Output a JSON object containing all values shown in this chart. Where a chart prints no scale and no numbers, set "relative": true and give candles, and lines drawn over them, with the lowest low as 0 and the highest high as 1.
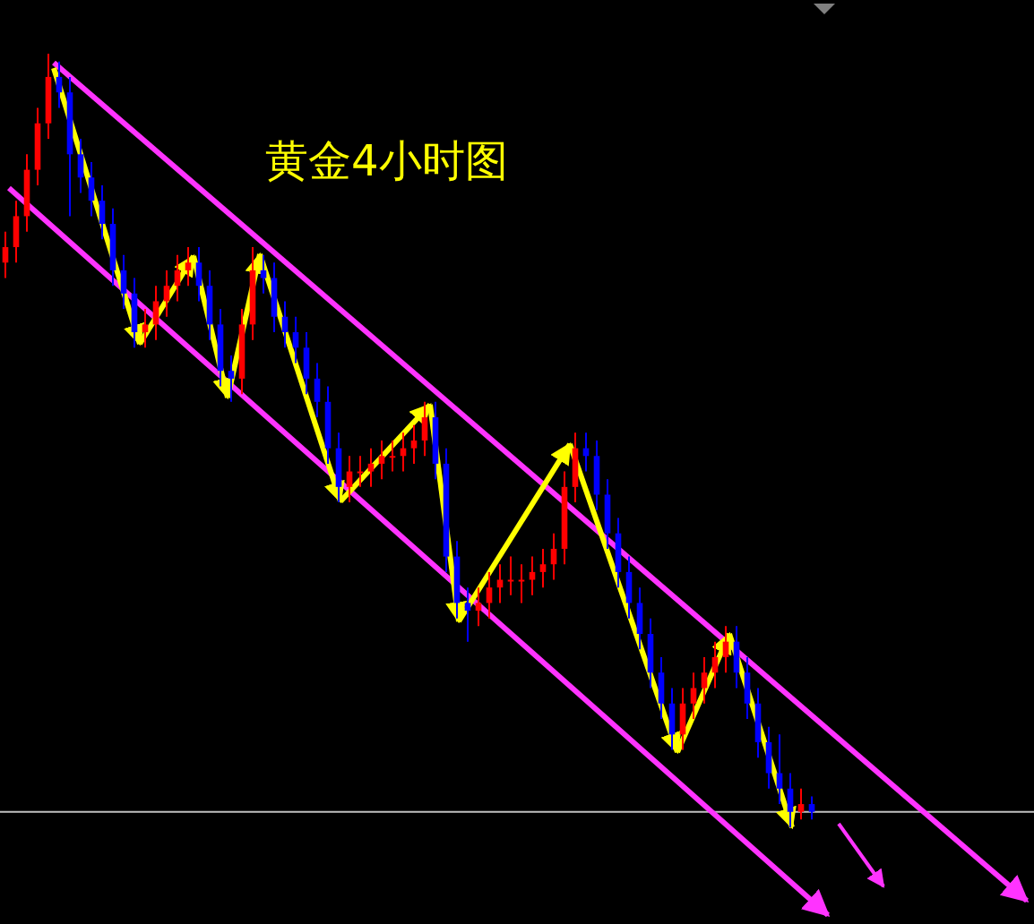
{
  "chart_data": {
    "type": "candlestick",
    "title": "黄金4小时图",
    "relative": true,
    "categories": [
      null,
      null,
      null,
      null,
      null,
      null,
      null,
      null,
      null,
      null,
      null,
      null,
      null,
      null,
      null,
      null,
      null,
      null,
      null,
      null,
      null,
      null,
      null,
      null,
      null,
      null,
      null,
      null,
      null,
      null,
      null,
      null,
      null,
      null,
      null,
      null,
      null,
      null,
      null,
      null,
      null,
      null,
      null,
      null,
      null,
      null,
      null,
      null,
      null,
      null,
      null,
      null,
      null,
      null,
      null,
      null,
      null,
      null,
      null,
      null,
      null,
      null,
      null,
      null,
      null,
      null,
      null,
      null,
      null,
      null,
      null,
      null,
      null,
      null,
      null,
      null
    ],
    "ohlc": [
      [
        0.73,
        0.77,
        0.71,
        0.75
      ],
      [
        0.75,
        0.81,
        0.73,
        0.79
      ],
      [
        0.79,
        0.87,
        0.77,
        0.85
      ],
      [
        0.85,
        0.93,
        0.83,
        0.91
      ],
      [
        0.91,
        1,
        0.89,
        0.97
      ],
      [
        0.97,
        0.99,
        0.93,
        0.95
      ],
      [
        0.95,
        0.97,
        0.79,
        0.87
      ],
      [
        0.87,
        0.89,
        0.82,
        0.84
      ],
      [
        0.84,
        0.86,
        0.79,
        0.81
      ],
      [
        0.81,
        0.83,
        0.76,
        0.78
      ],
      [
        0.78,
        0.8,
        0.7,
        0.72
      ],
      [
        0.72,
        0.74,
        0.67,
        0.69
      ],
      [
        0.69,
        0.71,
        0.62,
        0.64
      ],
      [
        0.64,
        0.67,
        0.62,
        0.65
      ],
      [
        0.65,
        0.7,
        0.63,
        0.68
      ],
      [
        0.68,
        0.72,
        0.66,
        0.7
      ],
      [
        0.7,
        0.74,
        0.68,
        0.72
      ],
      [
        0.72,
        0.75,
        0.7,
        0.73
      ],
      [
        0.73,
        0.75,
        0.68,
        0.7
      ],
      [
        0.7,
        0.72,
        0.63,
        0.65
      ],
      [
        0.65,
        0.67,
        0.57,
        0.59
      ],
      [
        0.59,
        0.61,
        0.55,
        0.58
      ],
      [
        0.58,
        0.67,
        0.56,
        0.65
      ],
      [
        0.65,
        0.75,
        0.63,
        0.72
      ],
      [
        0.72,
        0.74,
        0.69,
        0.71
      ],
      [
        0.71,
        0.73,
        0.64,
        0.66
      ],
      [
        0.66,
        0.68,
        0.62,
        0.64
      ],
      [
        0.64,
        0.66,
        0.6,
        0.62
      ],
      [
        0.62,
        0.64,
        0.56,
        0.58
      ],
      [
        0.58,
        0.6,
        0.53,
        0.55
      ],
      [
        0.55,
        0.57,
        0.47,
        0.49
      ],
      [
        0.49,
        0.51,
        0.42,
        0.44
      ],
      [
        0.44,
        0.48,
        0.42,
        0.46
      ],
      [
        0.46,
        0.48,
        0.44,
        0.46
      ],
      [
        0.46,
        0.49,
        0.44,
        0.47
      ],
      [
        0.47,
        0.5,
        0.45,
        0.48
      ],
      [
        0.48,
        0.5,
        0.46,
        0.48
      ],
      [
        0.48,
        0.51,
        0.46,
        0.49
      ],
      [
        0.49,
        0.52,
        0.47,
        0.5
      ],
      [
        0.5,
        0.55,
        0.48,
        0.53
      ],
      [
        0.53,
        0.55,
        0.45,
        0.47
      ],
      [
        0.47,
        0.49,
        0.33,
        0.35
      ],
      [
        0.35,
        0.37,
        0.27,
        0.29
      ],
      [
        0.29,
        0.31,
        0.24,
        0.28
      ],
      [
        0.28,
        0.31,
        0.26,
        0.29
      ],
      [
        0.29,
        0.33,
        0.27,
        0.31
      ],
      [
        0.31,
        0.34,
        0.29,
        0.32
      ],
      [
        0.32,
        0.35,
        0.3,
        0.32
      ],
      [
        0.32,
        0.34,
        0.29,
        0.32
      ],
      [
        0.32,
        0.35,
        0.3,
        0.33
      ],
      [
        0.33,
        0.36,
        0.31,
        0.34
      ],
      [
        0.34,
        0.38,
        0.32,
        0.36
      ],
      [
        0.36,
        0.46,
        0.34,
        0.44
      ],
      [
        0.44,
        0.51,
        0.42,
        0.49
      ],
      [
        0.49,
        0.51,
        0.46,
        0.48
      ],
      [
        0.48,
        0.5,
        0.41,
        0.43
      ],
      [
        0.43,
        0.45,
        0.36,
        0.38
      ],
      [
        0.38,
        0.4,
        0.31,
        0.33
      ],
      [
        0.33,
        0.35,
        0.27,
        0.29
      ],
      [
        0.29,
        0.31,
        0.23,
        0.25
      ],
      [
        0.25,
        0.27,
        0.18,
        0.2
      ],
      [
        0.2,
        0.22,
        0.14,
        0.16
      ],
      [
        0.16,
        0.18,
        0.1,
        0.12
      ],
      [
        0.12,
        0.18,
        0.1,
        0.16
      ],
      [
        0.16,
        0.2,
        0.14,
        0.18
      ],
      [
        0.18,
        0.22,
        0.16,
        0.2
      ],
      [
        0.2,
        0.24,
        0.18,
        0.22
      ],
      [
        0.22,
        0.26,
        0.2,
        0.24
      ],
      [
        0.24,
        0.26,
        0.18,
        0.2
      ],
      [
        0.2,
        0.22,
        0.14,
        0.16
      ],
      [
        0.16,
        0.18,
        0.09,
        0.11
      ],
      [
        0.11,
        0.13,
        0.05,
        0.07
      ],
      [
        0.07,
        0.12,
        0.03,
        0.05
      ],
      [
        0.05,
        0.07,
        0,
        0.02
      ],
      [
        0.02,
        0.05,
        0.01,
        0.03
      ],
      [
        0.03,
        0.04,
        0.01,
        0.02
      ]
    ],
    "colors": [
      "#ff0000",
      "#ff0000",
      "#ff0000",
      "#ff0000",
      "#ff0000",
      "#0000ff",
      "#0000ff",
      "#0000ff",
      "#0000ff",
      "#0000ff",
      "#0000ff",
      "#0000ff",
      "#0000ff",
      "#ff0000",
      "#ff0000",
      "#ff0000",
      "#ff0000",
      "#ff0000",
      "#0000ff",
      "#0000ff",
      "#0000ff",
      "#0000ff",
      "#ff0000",
      "#ff0000",
      "#0000ff",
      "#0000ff",
      "#0000ff",
      "#0000ff",
      "#0000ff",
      "#0000ff",
      "#0000ff",
      "#0000ff",
      "#ff0000",
      "#ff0000",
      "#ff0000",
      "#ff0000",
      "#ff0000",
      "#ff0000",
      "#ff0000",
      "#ff0000",
      "#0000ff",
      "#0000ff",
      "#0000ff",
      "#0000ff",
      "#ff0000",
      "#ff0000",
      "#ff0000",
      "#ff0000",
      "#ff0000",
      "#ff0000",
      "#ff0000",
      "#ff0000",
      "#ff0000",
      "#ff0000",
      "#0000ff",
      "#0000ff",
      "#0000ff",
      "#0000ff",
      "#0000ff",
      "#0000ff",
      "#0000ff",
      "#0000ff",
      "#0000ff",
      "#ff0000",
      "#ff0000",
      "#ff0000",
      "#ff0000",
      "#ff0000",
      "#0000ff",
      "#0000ff",
      "#0000ff",
      "#0000ff",
      "#0000ff",
      "#0000ff",
      "#ff0000",
      "#0000ff"
    ],
    "ref_lines": [
      {
        "axis": "y",
        "value": 0.02,
        "color": "#c0c0c0"
      }
    ]
  }
}
